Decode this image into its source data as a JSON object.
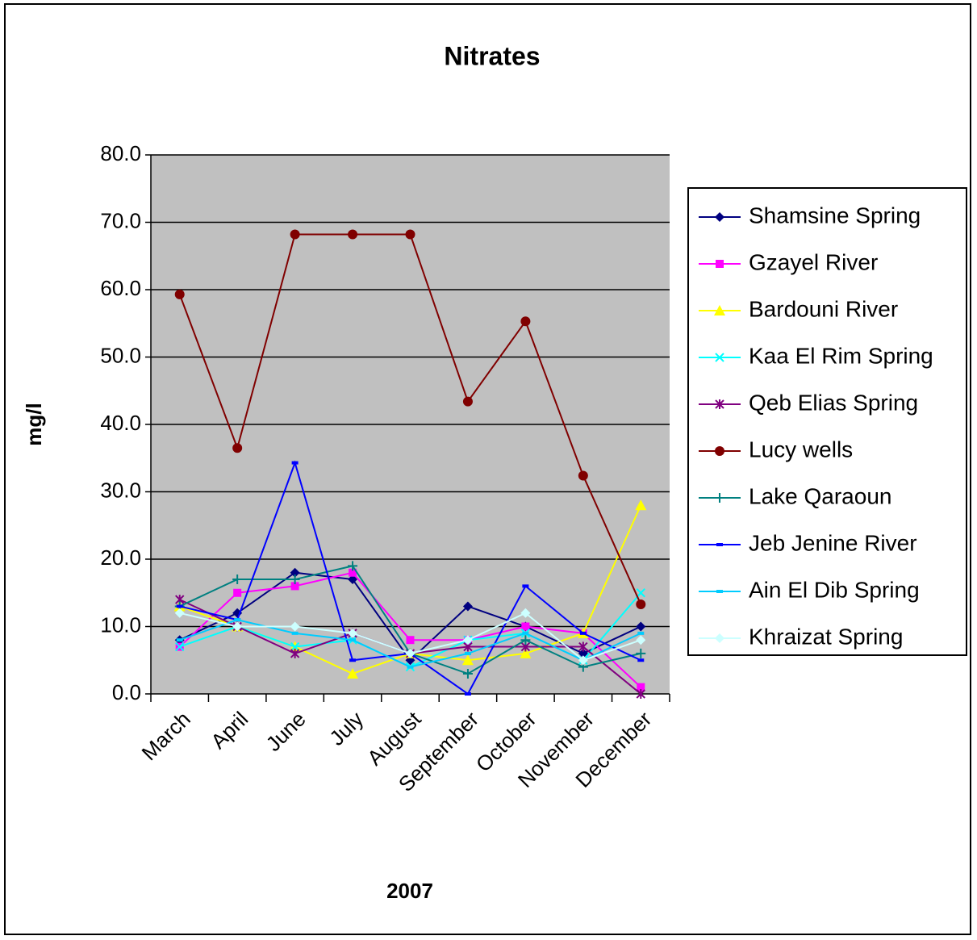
{
  "chart_data": {
    "type": "line",
    "title": "Nitrates",
    "x_label": "2007",
    "y_label": "mg/l",
    "categories": [
      "March",
      "April",
      "June",
      "July",
      "August",
      "September",
      "October",
      "November",
      "December"
    ],
    "ylim": [
      0,
      80
    ],
    "yticks": [
      {
        "value": 0,
        "label": "0.0"
      },
      {
        "value": 10,
        "label": "10.0"
      },
      {
        "value": 20,
        "label": "20.0"
      },
      {
        "value": 30,
        "label": "30.0"
      },
      {
        "value": 40,
        "label": "40.0"
      },
      {
        "value": 50,
        "label": "50.0"
      },
      {
        "value": 60,
        "label": "60.0"
      },
      {
        "value": 70,
        "label": "70.0"
      },
      {
        "value": 80,
        "label": "80.0"
      }
    ],
    "grid": true,
    "legend": "right",
    "series": [
      {
        "name": "Shamsine Spring",
        "color": "#000080",
        "marker": "diamond",
        "values": [
          8,
          12,
          18,
          17,
          5,
          13,
          10,
          6,
          10
        ]
      },
      {
        "name": "Gzayel River",
        "color": "#ff00ff",
        "marker": "square",
        "values": [
          7,
          15,
          16,
          18,
          8,
          8,
          10,
          9,
          1
        ]
      },
      {
        "name": "Bardouni River",
        "color": "#ffff00",
        "marker": "triangle",
        "values": [
          13,
          10,
          7,
          3,
          6,
          5,
          6,
          9,
          28
        ]
      },
      {
        "name": "Kaa El Rim Spring",
        "color": "#00ffff",
        "marker": "x",
        "values": [
          7,
          10,
          7,
          8,
          4,
          8,
          9,
          5,
          15
        ]
      },
      {
        "name": "Qeb Elias Spring",
        "color": "#800080",
        "marker": "star",
        "values": [
          14,
          10,
          6,
          9,
          6,
          7,
          7,
          7,
          0
        ]
      },
      {
        "name": "Lucy wells",
        "color": "#800000",
        "marker": "circle",
        "values": [
          59.3,
          36.5,
          68.2,
          68.2,
          68.2,
          43.4,
          55.3,
          32.4,
          13.3
        ]
      },
      {
        "name": "Lake Qaraoun",
        "color": "#008080",
        "marker": "plus",
        "values": [
          13,
          17,
          17,
          19,
          6,
          3,
          8,
          4,
          6
        ]
      },
      {
        "name": "Jeb Jenine River",
        "color": "#0000ff",
        "marker": "dash",
        "values": [
          13,
          11,
          34.3,
          5,
          6,
          0,
          16,
          9,
          5
        ]
      },
      {
        "name": "Ain El Dib Spring",
        "color": "#00ccff",
        "marker": "dash",
        "values": [
          8,
          11,
          9,
          8,
          4,
          6,
          9,
          5,
          9
        ]
      },
      {
        "name": "Khraizat Spring",
        "color": "#ccffff",
        "marker": "diamond",
        "values": [
          12,
          10,
          10,
          9,
          6,
          8,
          12,
          5,
          8
        ]
      }
    ]
  }
}
